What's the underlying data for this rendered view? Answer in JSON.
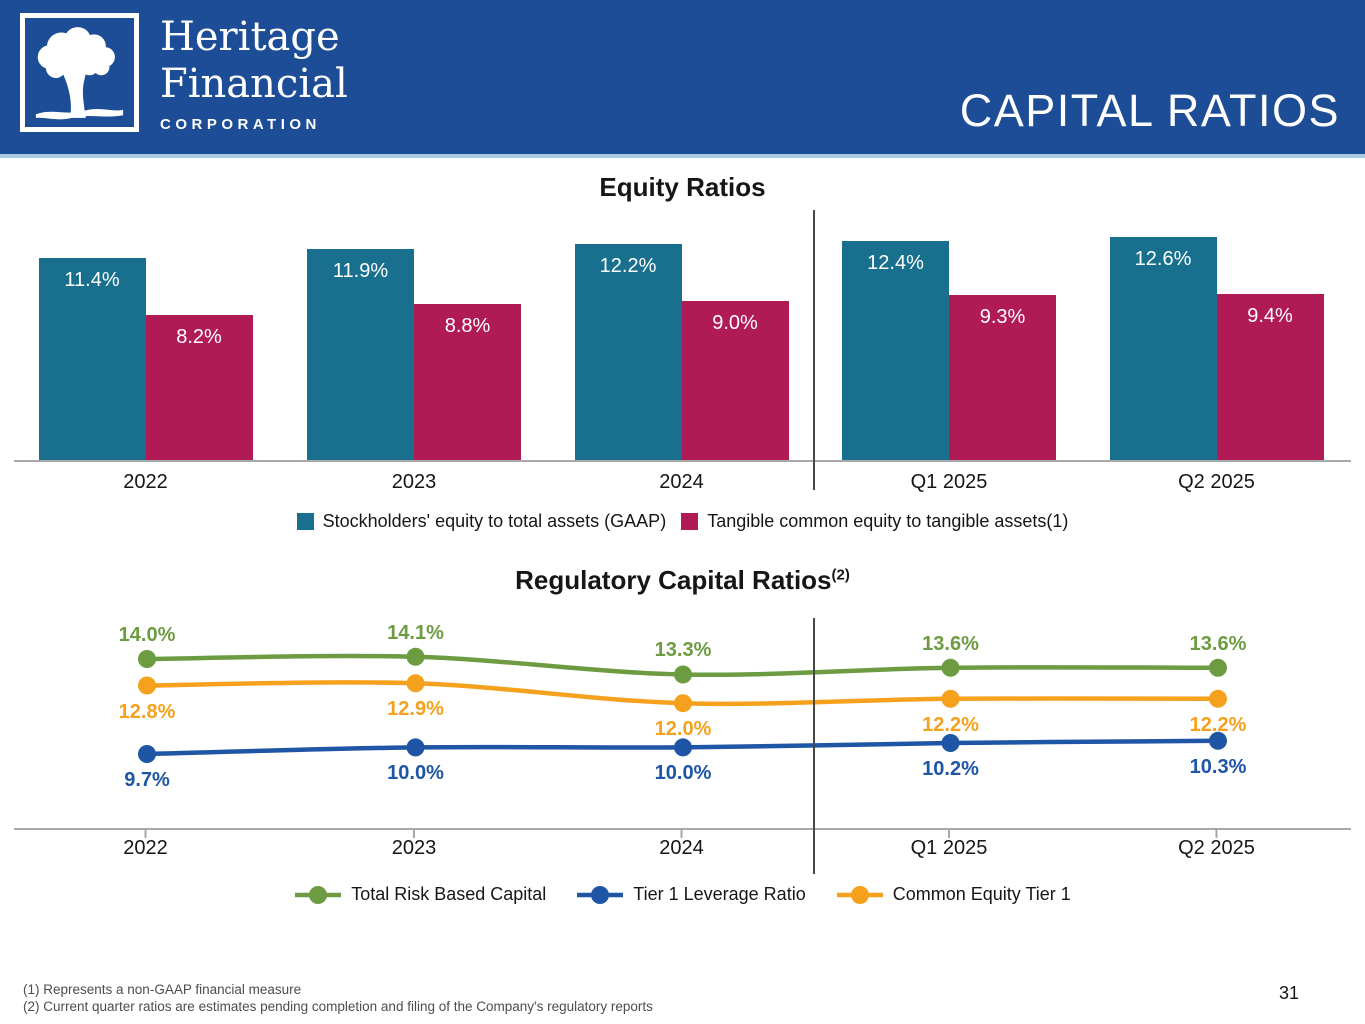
{
  "header": {
    "title": "CAPITAL RATIOS",
    "logo": {
      "line1": "Heritage",
      "line2": "Financial",
      "line3": "CORPORATION"
    }
  },
  "colors": {
    "header_bg": "#1c4d96",
    "teal": "#19708e",
    "crimson": "#b01b56",
    "green": "#6d9b41",
    "orange": "#f5a11e",
    "blue": "#1e55a5",
    "axis_gray": "#a8a8a8",
    "divider_gray": "#474747"
  },
  "chart_data": [
    {
      "type": "bar",
      "title": "Equity Ratios",
      "categories": [
        "2022",
        "2023",
        "2024",
        "Q1 2025",
        "Q2 2025"
      ],
      "series": [
        {
          "name": "Stockholders' equity to total assets (GAAP)",
          "color_key": "teal",
          "values": [
            11.4,
            11.9,
            12.2,
            12.4,
            12.6
          ],
          "labels": [
            "11.4%",
            "11.9%",
            "12.2%",
            "12.4%",
            "12.6%"
          ]
        },
        {
          "name": "Tangible common equity to tangible assets(1)",
          "color_key": "crimson",
          "values": [
            8.2,
            8.8,
            9.0,
            9.3,
            9.4
          ],
          "labels": [
            "8.2%",
            "8.8%",
            "9.0%",
            "9.3%",
            "9.4%"
          ]
        }
      ],
      "ylim": [
        0,
        13
      ],
      "grid": false,
      "legend_position": "bottom",
      "divider_after_category": "2024"
    },
    {
      "type": "line",
      "title": "Regulatory Capital Ratios",
      "title_superscript": "(2)",
      "categories": [
        "2022",
        "2023",
        "2024",
        "Q1 2025",
        "Q2 2025"
      ],
      "series": [
        {
          "name": "Total Risk Based Capital",
          "color_key": "green",
          "values": [
            14.0,
            14.1,
            13.3,
            13.6,
            13.6
          ],
          "labels": [
            "14.0%",
            "14.1%",
            "13.3%",
            "13.6%",
            "13.6%"
          ],
          "label_position": "above"
        },
        {
          "name": "Tier 1 Leverage Ratio",
          "color_key": "blue",
          "values": [
            9.7,
            10.0,
            10.0,
            10.2,
            10.3
          ],
          "labels": [
            "9.7%",
            "10.0%",
            "10.0%",
            "10.2%",
            "10.3%"
          ],
          "label_position": "below"
        },
        {
          "name": "Common Equity Tier 1",
          "color_key": "orange",
          "values": [
            12.8,
            12.9,
            12.0,
            12.2,
            12.2
          ],
          "labels": [
            "12.8%",
            "12.9%",
            "12.0%",
            "12.2%",
            "12.2%"
          ],
          "label_position": "below"
        }
      ],
      "ylim": [
        9,
        15
      ],
      "grid": false,
      "legend_position": "bottom",
      "divider_after_category": "2024"
    }
  ],
  "footnotes": [
    "(1) Represents a non-GAAP financial measure",
    "(2) Current quarter ratios are estimates pending completion and filing of the Company's regulatory reports"
  ],
  "page_number": "31"
}
